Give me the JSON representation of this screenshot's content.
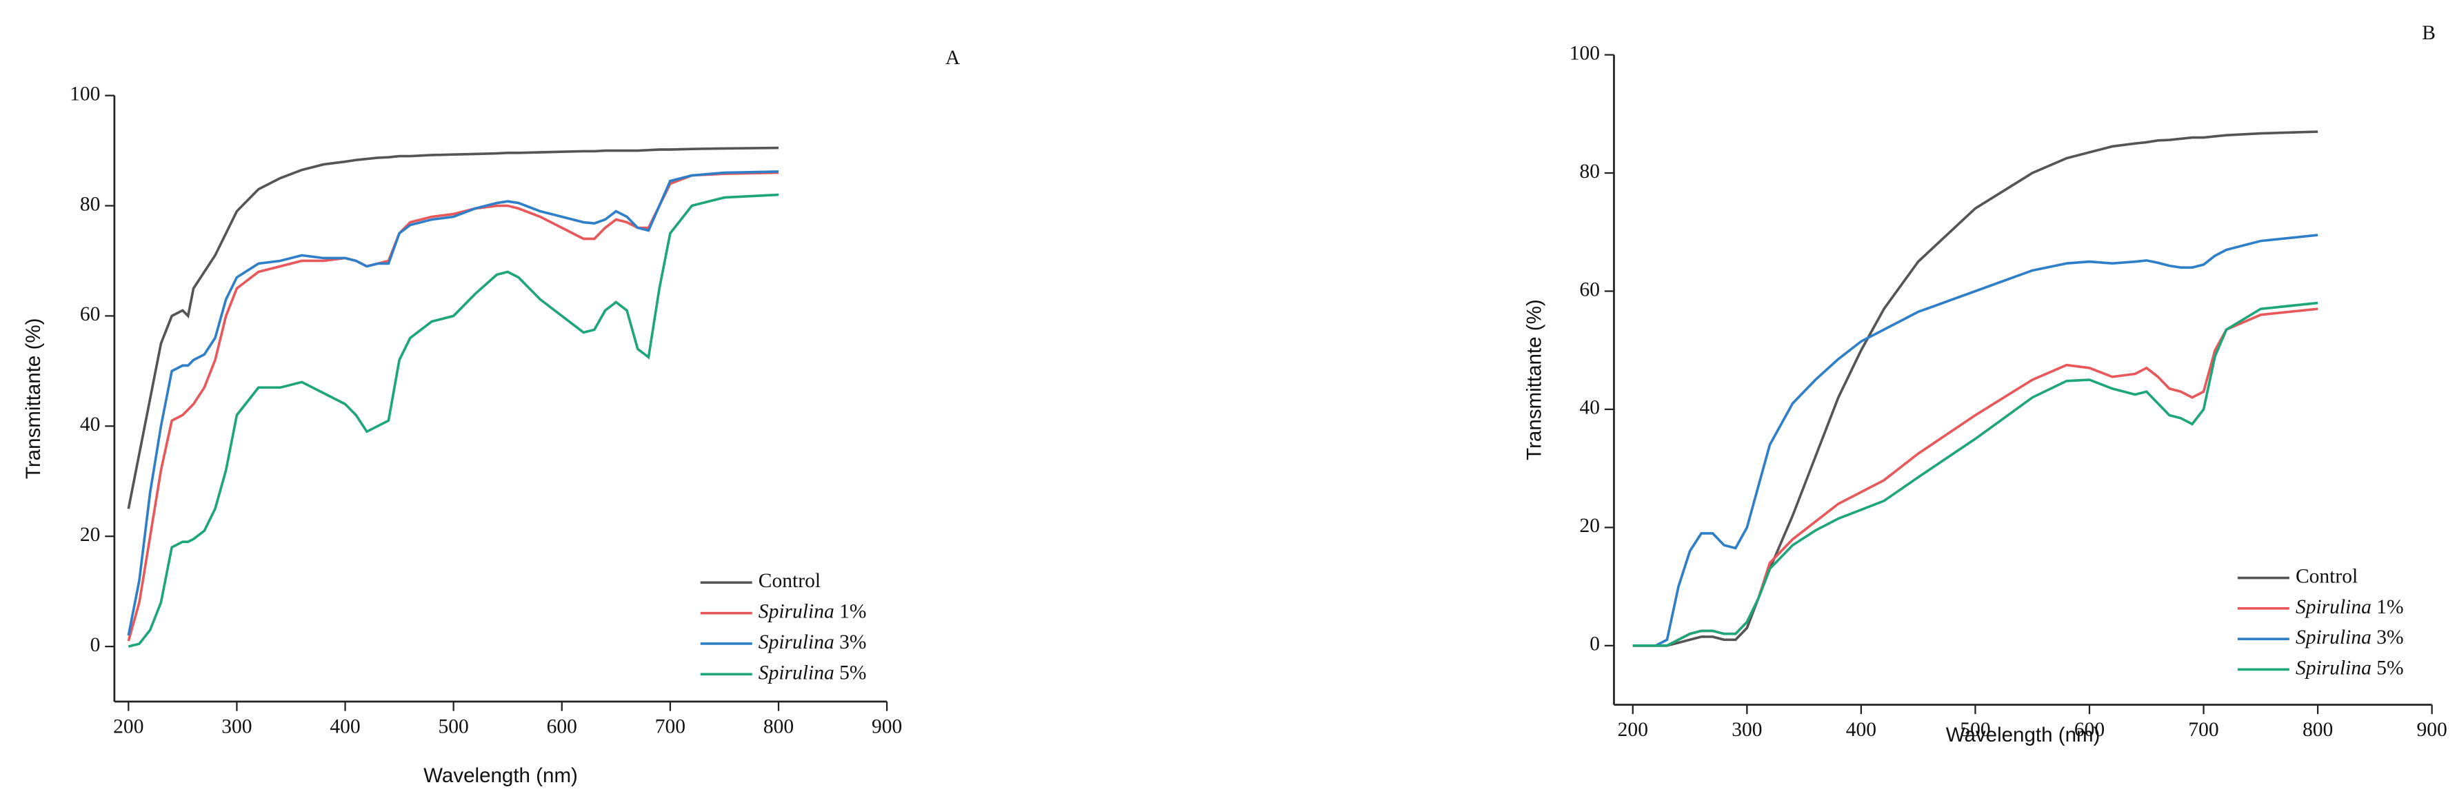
{
  "chart_data": [
    {
      "type": "line",
      "annotation": "A",
      "x_label": "Wavelength (nm)",
      "y_label": "Transmittante (%)",
      "xlim": [
        187,
        900
      ],
      "ylim": [
        -10,
        100
      ],
      "xticks": [
        200,
        300,
        400,
        500,
        600,
        700,
        800,
        900
      ],
      "yticks": [
        0,
        20,
        40,
        60,
        80,
        100
      ],
      "legend": "lower right",
      "x": [
        200,
        210,
        220,
        230,
        240,
        250,
        255,
        260,
        270,
        280,
        290,
        300,
        320,
        340,
        360,
        380,
        400,
        410,
        420,
        430,
        440,
        450,
        460,
        480,
        500,
        520,
        540,
        550,
        560,
        580,
        600,
        620,
        630,
        640,
        650,
        660,
        670,
        680,
        690,
        700,
        720,
        750,
        800
      ],
      "series": [
        {
          "name": "Control",
          "color": "#555555",
          "values": [
            25,
            35,
            45,
            55,
            60,
            61,
            60,
            65,
            68,
            71,
            75,
            79,
            83,
            85,
            86.5,
            87.5,
            88,
            88.3,
            88.5,
            88.7,
            88.8,
            89,
            89,
            89.2,
            89.3,
            89.4,
            89.5,
            89.6,
            89.6,
            89.7,
            89.8,
            89.9,
            89.9,
            90,
            90,
            90,
            90,
            90.1,
            90.2,
            90.2,
            90.3,
            90.4,
            90.5
          ]
        },
        {
          "name": "Spirulina 1%",
          "color": "#e8585a",
          "values": [
            1,
            8,
            20,
            32,
            41,
            42,
            43,
            44,
            47,
            52,
            60,
            65,
            68,
            69,
            70,
            70,
            70.5,
            70,
            69,
            69.5,
            70,
            75,
            77,
            78,
            78.5,
            79.5,
            80,
            80,
            79.5,
            78,
            76,
            74,
            74,
            76,
            77.5,
            77,
            76,
            76,
            80,
            84,
            85.5,
            85.8,
            86
          ]
        },
        {
          "name": "Spirulina 3%",
          "color": "#2f7fc8",
          "values": [
            2,
            12,
            28,
            40,
            50,
            51,
            51,
            52,
            53,
            56,
            63,
            67,
            69.5,
            70,
            71,
            70.5,
            70.5,
            70,
            69,
            69.5,
            69.5,
            75,
            76.5,
            77.5,
            78,
            79.5,
            80.5,
            80.8,
            80.5,
            79,
            78,
            77,
            76.8,
            77.5,
            79,
            78,
            76,
            75.5,
            80,
            84.5,
            85.5,
            86,
            86.2
          ]
        },
        {
          "name": "Spirulina 5%",
          "color": "#1ea678",
          "values": [
            0,
            0.5,
            3,
            8,
            18,
            19,
            19,
            19.5,
            21,
            25,
            32,
            42,
            47,
            47,
            48,
            46,
            44,
            42,
            39,
            40,
            41,
            52,
            56,
            59,
            60,
            64,
            67.5,
            68,
            67,
            63,
            60,
            57,
            57.5,
            61,
            62.5,
            61,
            54,
            52.5,
            65,
            75,
            80,
            81.5,
            82
          ]
        }
      ]
    },
    {
      "type": "line",
      "annotation": "B",
      "x_label": "Wavelength (nm)",
      "y_label": "Transmittante (%)",
      "xlim": [
        183.5,
        900
      ],
      "ylim": [
        -10,
        100
      ],
      "xticks": [
        200,
        300,
        400,
        500,
        600,
        700,
        800,
        900
      ],
      "yticks": [
        0,
        20,
        40,
        60,
        80,
        100
      ],
      "legend": "lower right",
      "x": [
        200,
        210,
        220,
        230,
        240,
        250,
        260,
        270,
        280,
        290,
        300,
        310,
        320,
        340,
        360,
        380,
        400,
        420,
        450,
        500,
        550,
        580,
        600,
        620,
        640,
        650,
        660,
        670,
        680,
        690,
        700,
        710,
        720,
        750,
        800
      ],
      "series": [
        {
          "name": "Control",
          "color": "#555555",
          "values": [
            0,
            0,
            0,
            0,
            0.5,
            1,
            1.5,
            1.5,
            1,
            1,
            3,
            8,
            13,
            22,
            32,
            42,
            50,
            57,
            65,
            74,
            80,
            82.5,
            83.5,
            84.5,
            85,
            85.2,
            85.5,
            85.6,
            85.8,
            86,
            86,
            86.2,
            86.4,
            86.7,
            87
          ]
        },
        {
          "name": "Spirulina 1%",
          "color": "#e8585a",
          "values": [
            0,
            0,
            0,
            0,
            1,
            2,
            2.5,
            2.5,
            2,
            2,
            4,
            8,
            14,
            18,
            21,
            24,
            26,
            28,
            32.5,
            39,
            45,
            47.5,
            47,
            45.5,
            46,
            47,
            45.5,
            43.5,
            43,
            42,
            43,
            50,
            53.5,
            56,
            57
          ]
        },
        {
          "name": "Spirulina 3%",
          "color": "#2f7fc8",
          "values": [
            0,
            0,
            0,
            1,
            10,
            16,
            19,
            19,
            17,
            16.5,
            20,
            27,
            34,
            41,
            45,
            48.5,
            51.5,
            53.5,
            56.5,
            60,
            63.5,
            64.7,
            65,
            64.7,
            65,
            65.2,
            64.8,
            64.3,
            64,
            64,
            64.5,
            66,
            67,
            68.5,
            69.5
          ]
        },
        {
          "name": "Spirulina 5%",
          "color": "#1ea678",
          "values": [
            0,
            0,
            0,
            0,
            1,
            2,
            2.5,
            2.5,
            2,
            2,
            4,
            8,
            13,
            17,
            19.5,
            21.5,
            23,
            24.5,
            28.5,
            35,
            42,
            44.8,
            45,
            43.5,
            42.5,
            43,
            41,
            39,
            38.5,
            37.5,
            40,
            49,
            53.5,
            57,
            58
          ]
        }
      ]
    }
  ]
}
